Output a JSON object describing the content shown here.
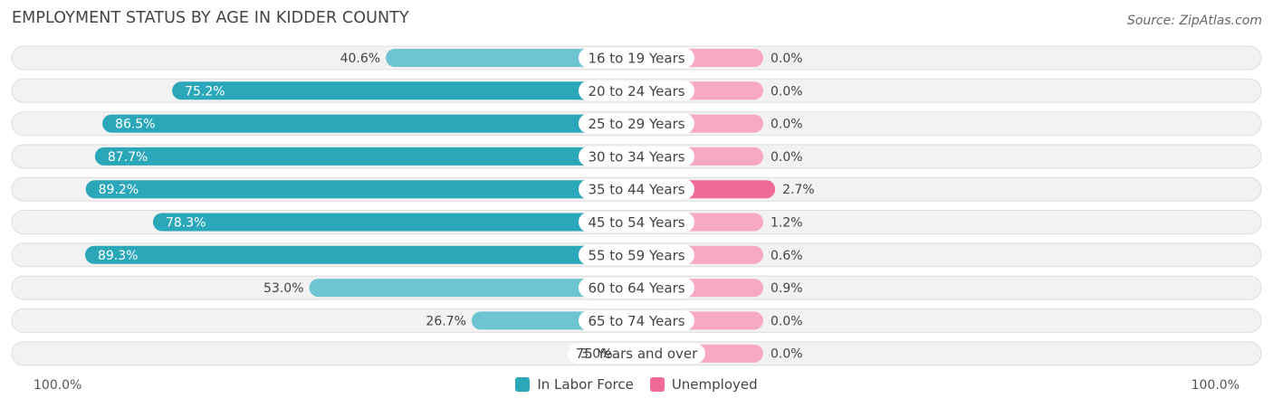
{
  "header": {
    "title": "EMPLOYMENT STATUS BY AGE IN KIDDER COUNTY",
    "source": "Source: ZipAtlas.com"
  },
  "axis": {
    "left_label": "100.0%",
    "right_label": "100.0%"
  },
  "legend": [
    {
      "label": "In Labor Force",
      "color": "#2aa7b9"
    },
    {
      "label": "Unemployed",
      "color": "#f06a96"
    }
  ],
  "colors": {
    "labor_strong": "#2aa7b9",
    "labor_light": "#6dc5d1",
    "unemp_strong": "#f06a96",
    "unemp_light": "#f7a8c2",
    "row_bg": "#f2f2f2",
    "row_border": "#dddddd"
  },
  "chart_data": {
    "type": "bar",
    "title": "EMPLOYMENT STATUS BY AGE IN KIDDER COUNTY",
    "categories": [
      "16 to 19 Years",
      "20 to 24 Years",
      "25 to 29 Years",
      "30 to 34 Years",
      "35 to 44 Years",
      "45 to 54 Years",
      "55 to 59 Years",
      "60 to 64 Years",
      "65 to 74 Years",
      "75 Years and over"
    ],
    "series": [
      {
        "name": "In Labor Force",
        "values": [
          40.6,
          75.2,
          86.5,
          87.7,
          89.2,
          78.3,
          89.3,
          53.0,
          26.7,
          3.0
        ]
      },
      {
        "name": "Unemployed",
        "values": [
          0.0,
          0.0,
          0.0,
          0.0,
          2.7,
          1.2,
          0.6,
          0.9,
          0.0,
          0.0
        ]
      }
    ],
    "value_labels": {
      "labor": [
        "40.6%",
        "75.2%",
        "86.5%",
        "87.7%",
        "89.2%",
        "78.3%",
        "89.3%",
        "53.0%",
        "26.7%",
        "3.0%"
      ],
      "unemployed": [
        "0.0%",
        "0.0%",
        "0.0%",
        "0.0%",
        "2.7%",
        "1.2%",
        "0.6%",
        "0.9%",
        "0.0%",
        "0.0%"
      ]
    },
    "xlim": [
      -100,
      100
    ],
    "legend_position": "bottom-center"
  }
}
